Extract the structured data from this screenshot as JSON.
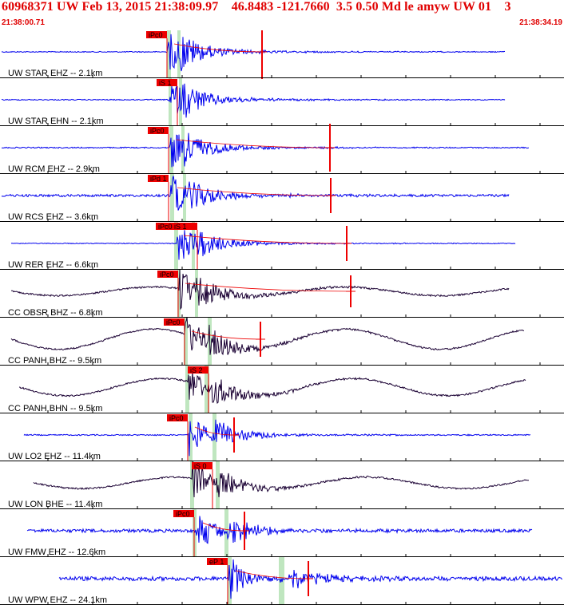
{
  "header": {
    "title": "60968371 UW Feb 13, 2015 21:38:09.97    46.8483 -121.7660  3.5 0.50 Md le amyw UW 01    3",
    "start_time": "21:38:00.71",
    "end_time": "21:38:34.19"
  },
  "colors": {
    "short_period": "#0000ee",
    "broadband": "#1a0033",
    "pick": "#ee0000",
    "window": "#bfe6bf",
    "separator": "#000000"
  },
  "traces": [
    {
      "label": "UW STAR EHZ -- 2.1km",
      "pick": "iPc0",
      "color": "short_period"
    },
    {
      "label": "UW STAR EHN -- 2.1km",
      "pick": "iS 1",
      "color": "short_period"
    },
    {
      "label": "UW RCM EHZ -- 2.9km",
      "pick": "iPc0",
      "color": "short_period"
    },
    {
      "label": "UW RCS EHZ -- 3.6km",
      "pick": "iPd 1",
      "color": "short_period"
    },
    {
      "label": "UW RER EHZ -- 6.6km",
      "pick": "iPc0 iS 1",
      "color": "short_period"
    },
    {
      "label": "CC OBSR BHZ -- 6.8km",
      "pick": "iPc0",
      "color": "broadband"
    },
    {
      "label": "CC PANH BHZ -- 9.5km",
      "pick": "iPc0",
      "color": "broadband"
    },
    {
      "label": "CC PANH BHN -- 9.5km",
      "pick": "iS 2",
      "color": "broadband"
    },
    {
      "label": "UW LO2 EHZ -- 11.4km",
      "pick": "iPc0",
      "color": "short_period"
    },
    {
      "label": "UW LON BHE -- 11.4km",
      "pick": "iS 0",
      "color": "broadband"
    },
    {
      "label": "UW FMW EHZ -- 12.6km",
      "pick": "iPc0",
      "color": "short_period"
    },
    {
      "label": "UW WPW EHZ -- 24.1km",
      "pick": "eP 1",
      "color": "short_period"
    }
  ]
}
